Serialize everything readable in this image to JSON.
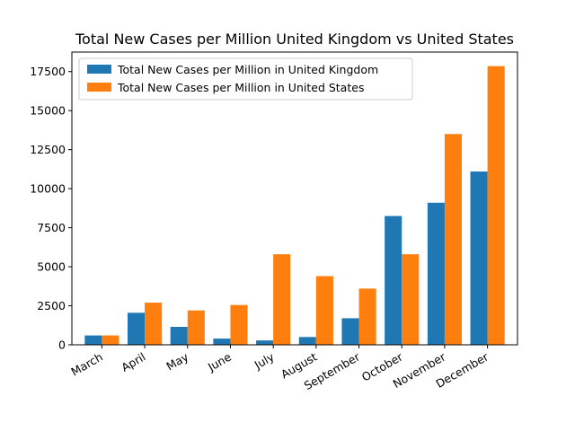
{
  "chart_data": {
    "type": "bar",
    "title": "Total New Cases per Million United Kingdom vs United States",
    "xlabel": "",
    "ylabel": "",
    "categories": [
      "March",
      "April",
      "May",
      "June",
      "July",
      "August",
      "September",
      "October",
      "November",
      "December"
    ],
    "series": [
      {
        "name": "Total New Cases per Million in United Kingdom",
        "color": "#1f77b4",
        "values": [
          600,
          2050,
          1150,
          400,
          280,
          500,
          1700,
          8250,
          9100,
          11100
        ]
      },
      {
        "name": "Total New Cases per Million in United States",
        "color": "#ff7f0e",
        "values": [
          600,
          2700,
          2200,
          2550,
          5800,
          4400,
          3600,
          5800,
          13500,
          17850
        ]
      }
    ],
    "ylim": [
      0,
      18750
    ],
    "yticks": [
      0,
      2500,
      5000,
      7500,
      10000,
      12500,
      15000,
      17500
    ],
    "ytick_labels": [
      "0",
      "2500",
      "5000",
      "7500",
      "10000",
      "12500",
      "15000",
      "17500"
    ],
    "legend_position": "upper-left",
    "grid": false
  }
}
